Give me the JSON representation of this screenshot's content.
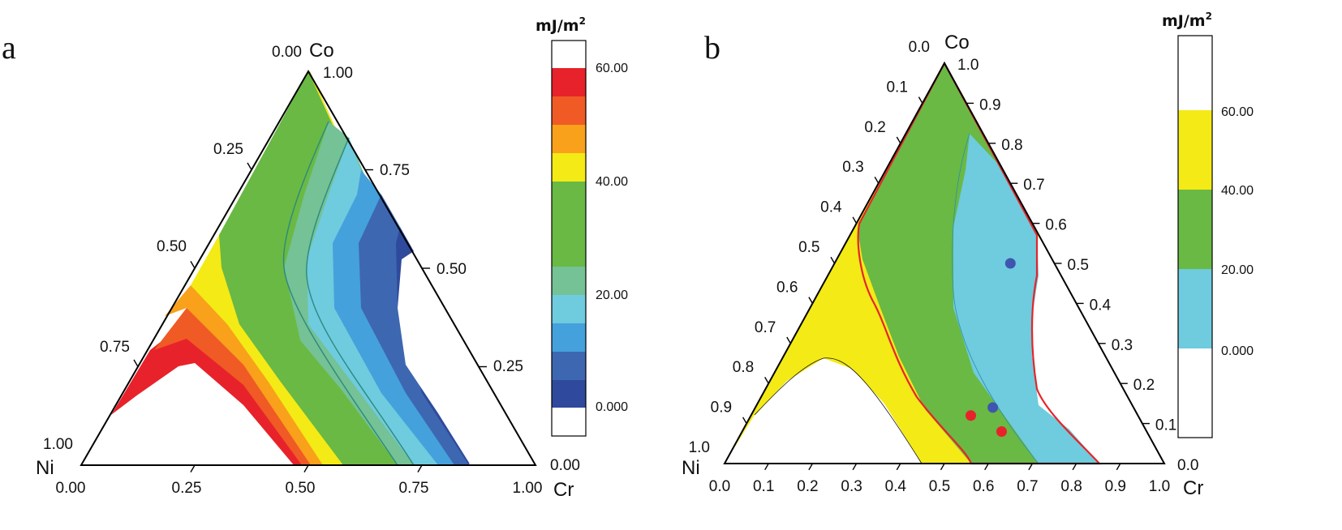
{
  "chart_data": [
    {
      "type": "ternary-contour",
      "panel": "a",
      "vertices": {
        "top": "Co",
        "left": "Ni",
        "right": "Cr"
      },
      "ticks": {
        "bottom": [
          "0.00",
          "0.25",
          "0.50",
          "0.75",
          "1.00"
        ],
        "left": [
          "1.00",
          "0.75",
          "0.50",
          "0.25",
          "0.00"
        ],
        "right": [
          "1.00",
          "0.75",
          "0.50",
          "0.25",
          "0.00"
        ]
      },
      "colorbar": {
        "unit": "mJ/m",
        "unit_sup": "2",
        "labels": [
          "60.00",
          "40.00",
          "20.00",
          "0.000"
        ],
        "levels": [
          {
            "range": ">60",
            "color": "#ffffff"
          },
          {
            "range": "55-60",
            "color": "#e8222a"
          },
          {
            "range": "50-55",
            "color": "#f05a25"
          },
          {
            "range": "45-50",
            "color": "#f9a11b"
          },
          {
            "range": "40-45",
            "color": "#f4ea16"
          },
          {
            "range": "25-40",
            "color": "#69b944"
          },
          {
            "range": "20-25",
            "color": "#74c295"
          },
          {
            "range": "15-20",
            "color": "#6fcbde"
          },
          {
            "range": "10-15",
            "color": "#44a1dc"
          },
          {
            "range": "5-10",
            "color": "#3e67b1"
          },
          {
            "range": "0-5",
            "color": "#2f4a9c"
          },
          {
            "range": "<0",
            "color": "#ffffff"
          }
        ]
      }
    },
    {
      "type": "ternary-contour",
      "panel": "b",
      "vertices": {
        "top": "Co",
        "left": "Ni",
        "right": "Cr"
      },
      "ticks": {
        "bottom": [
          "0.0",
          "0.1",
          "0.2",
          "0.3",
          "0.4",
          "0.5",
          "0.6",
          "0.7",
          "0.8",
          "0.9",
          "1.0"
        ],
        "left": [
          "0.0",
          "0.1",
          "0.2",
          "0.3",
          "0.4",
          "0.5",
          "0.6",
          "0.7",
          "0.8",
          "0.9",
          "1.0"
        ],
        "right": [
          "1.0",
          "0.9",
          "0.8",
          "0.7",
          "0.6",
          "0.5",
          "0.4",
          "0.3",
          "0.2",
          "0.1",
          "0.0"
        ]
      },
      "colorbar": {
        "unit": "mJ/m",
        "unit_sup": "2",
        "labels": [
          "60.00",
          "40.00",
          "20.00",
          "0.000"
        ],
        "levels": [
          {
            "range": ">60",
            "color": "#ffffff"
          },
          {
            "range": "40-60",
            "color": "#f4ea16"
          },
          {
            "range": "20-40",
            "color": "#69b944"
          },
          {
            "range": "0-20",
            "color": "#6fcbde"
          },
          {
            "range": "<0",
            "color": "#ffffff"
          }
        ]
      },
      "points": [
        {
          "Cr": 0.5,
          "Ni": 0.38,
          "Co": 0.12,
          "color": "#e8222a"
        },
        {
          "Cr": 0.59,
          "Ni": 0.33,
          "Co": 0.08,
          "color": "#e8222a"
        },
        {
          "Cr": 0.54,
          "Ni": 0.32,
          "Co": 0.14,
          "color": "#3e56b0"
        },
        {
          "Cr": 0.4,
          "Ni": 0.1,
          "Co": 0.5,
          "color": "#3e56b0"
        }
      ]
    }
  ]
}
